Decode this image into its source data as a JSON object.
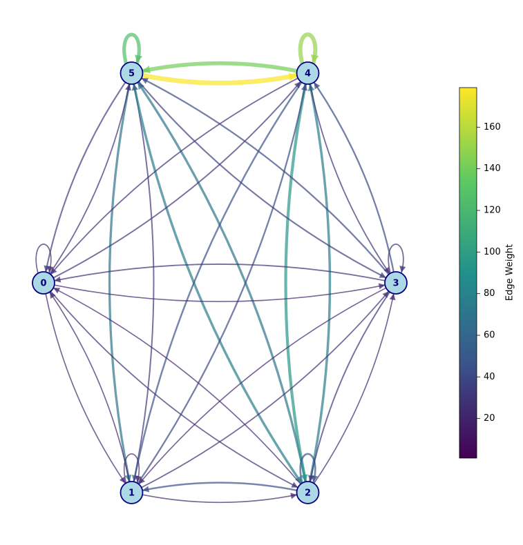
{
  "chart_data": {
    "type": "network",
    "nodes": [
      "0",
      "1",
      "2",
      "3",
      "4",
      "5"
    ],
    "edges": [
      {
        "source": "5",
        "target": "5",
        "weight": 125
      },
      {
        "source": "4",
        "target": "4",
        "weight": 150
      },
      {
        "source": "4",
        "target": "5",
        "weight": 140
      },
      {
        "source": "5",
        "target": "4",
        "weight": 178
      },
      {
        "source": "5",
        "target": "1",
        "weight": 70
      },
      {
        "source": "1",
        "target": "5",
        "weight": 30
      },
      {
        "source": "5",
        "target": "2",
        "weight": 75
      },
      {
        "source": "2",
        "target": "5",
        "weight": 70
      },
      {
        "source": "4",
        "target": "2",
        "weight": 95
      },
      {
        "source": "2",
        "target": "4",
        "weight": 75
      },
      {
        "source": "4",
        "target": "1",
        "weight": 45
      },
      {
        "source": "1",
        "target": "4",
        "weight": 40
      },
      {
        "source": "0",
        "target": "0",
        "weight": 20
      },
      {
        "source": "3",
        "target": "3",
        "weight": 25
      },
      {
        "source": "1",
        "target": "1",
        "weight": 20
      },
      {
        "source": "2",
        "target": "2",
        "weight": 50
      },
      {
        "source": "0",
        "target": "3",
        "weight": 20
      },
      {
        "source": "3",
        "target": "0",
        "weight": 25
      },
      {
        "source": "2",
        "target": "1",
        "weight": 45
      },
      {
        "source": "1",
        "target": "2",
        "weight": 20
      },
      {
        "source": "0",
        "target": "5",
        "weight": 25
      },
      {
        "source": "5",
        "target": "0",
        "weight": 35
      },
      {
        "source": "0",
        "target": "4",
        "weight": 30
      },
      {
        "source": "4",
        "target": "0",
        "weight": 25
      },
      {
        "source": "0",
        "target": "1",
        "weight": 20
      },
      {
        "source": "1",
        "target": "0",
        "weight": 20
      },
      {
        "source": "0",
        "target": "2",
        "weight": 25
      },
      {
        "source": "2",
        "target": "0",
        "weight": 20
      },
      {
        "source": "3",
        "target": "5",
        "weight": 40
      },
      {
        "source": "5",
        "target": "3",
        "weight": 35
      },
      {
        "source": "3",
        "target": "4",
        "weight": 40
      },
      {
        "source": "4",
        "target": "3",
        "weight": 25
      },
      {
        "source": "3",
        "target": "1",
        "weight": 20
      },
      {
        "source": "1",
        "target": "3",
        "weight": 25
      },
      {
        "source": "3",
        "target": "2",
        "weight": 30
      },
      {
        "source": "2",
        "target": "3",
        "weight": 20
      }
    ],
    "ylabel": "Edge Weight",
    "ylim": [
      1,
      179
    ],
    "yticks": [
      20,
      40,
      60,
      80,
      100,
      120,
      140,
      160
    ]
  }
}
